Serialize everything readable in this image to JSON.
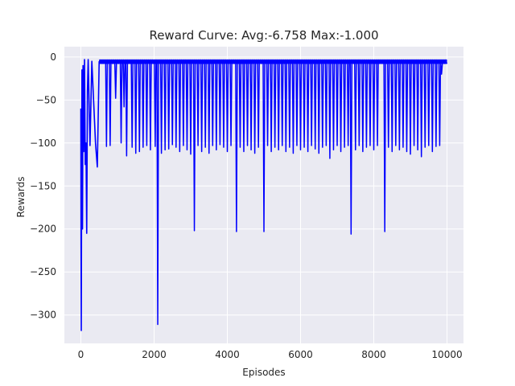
{
  "chart_data": {
    "type": "line",
    "title": "Reward Curve: Avg:-6.758 Max:-1.000",
    "xlabel": "Episodes",
    "ylabel": "Rewards",
    "xlim": [
      -450,
      10450
    ],
    "ylim": [
      -333,
      12
    ],
    "xticks": [
      0,
      2000,
      4000,
      6000,
      8000,
      10000
    ],
    "yticks": [
      0,
      -50,
      -100,
      -150,
      -200,
      -250,
      -300
    ],
    "grid": true,
    "colors": {
      "background": "#eaeaf2",
      "grid": "#ffffff",
      "line": "#0000ff"
    },
    "series": [
      {
        "color": "#0000ff",
        "baseline_range": [
          -3,
          -8
        ],
        "x_end": 10000,
        "initial_segment": [
          [
            0,
            -60
          ],
          [
            5,
            -215
          ],
          [
            12,
            -318
          ],
          [
            20,
            -160
          ],
          [
            30,
            -15
          ],
          [
            45,
            -200
          ],
          [
            60,
            -10
          ],
          [
            80,
            -110
          ],
          [
            100,
            -3
          ],
          [
            120,
            -125
          ],
          [
            140,
            -100
          ],
          [
            160,
            -205
          ],
          [
            180,
            -40
          ],
          [
            200,
            -3
          ],
          [
            250,
            -103
          ],
          [
            300,
            -5
          ],
          [
            400,
            -100
          ],
          [
            450,
            -128
          ],
          [
            500,
            -5
          ]
        ],
        "spikes": [
          [
            700,
            -104
          ],
          [
            800,
            -103
          ],
          [
            950,
            -48
          ],
          [
            1100,
            -100
          ],
          [
            1180,
            -58
          ],
          [
            1250,
            -115
          ],
          [
            1400,
            -105
          ],
          [
            1500,
            -112
          ],
          [
            1600,
            -110
          ],
          [
            1700,
            -105
          ],
          [
            1800,
            -103
          ],
          [
            1900,
            -108
          ],
          [
            2030,
            -104
          ],
          [
            2100,
            -311
          ],
          [
            2200,
            -112
          ],
          [
            2300,
            -108
          ],
          [
            2400,
            -107
          ],
          [
            2500,
            -102
          ],
          [
            2600,
            -105
          ],
          [
            2700,
            -110
          ],
          [
            2800,
            -103
          ],
          [
            2900,
            -108
          ],
          [
            3000,
            -113
          ],
          [
            3100,
            -202
          ],
          [
            3200,
            -103
          ],
          [
            3300,
            -110
          ],
          [
            3400,
            -105
          ],
          [
            3500,
            -112
          ],
          [
            3600,
            -103
          ],
          [
            3700,
            -108
          ],
          [
            3800,
            -102
          ],
          [
            3900,
            -105
          ],
          [
            4000,
            -110
          ],
          [
            4100,
            -103
          ],
          [
            4250,
            -203
          ],
          [
            4350,
            -105
          ],
          [
            4450,
            -110
          ],
          [
            4550,
            -103
          ],
          [
            4650,
            -108
          ],
          [
            4750,
            -112
          ],
          [
            4850,
            -105
          ],
          [
            5000,
            -203
          ],
          [
            5100,
            -103
          ],
          [
            5200,
            -110
          ],
          [
            5300,
            -105
          ],
          [
            5400,
            -108
          ],
          [
            5500,
            -103
          ],
          [
            5600,
            -110
          ],
          [
            5700,
            -105
          ],
          [
            5800,
            -112
          ],
          [
            5900,
            -103
          ],
          [
            6000,
            -108
          ],
          [
            6100,
            -105
          ],
          [
            6200,
            -110
          ],
          [
            6300,
            -103
          ],
          [
            6400,
            -107
          ],
          [
            6500,
            -112
          ],
          [
            6600,
            -105
          ],
          [
            6700,
            -103
          ],
          [
            6800,
            -118
          ],
          [
            6900,
            -108
          ],
          [
            7000,
            -103
          ],
          [
            7100,
            -110
          ],
          [
            7200,
            -105
          ],
          [
            7300,
            -103
          ],
          [
            7380,
            -206
          ],
          [
            7500,
            -108
          ],
          [
            7600,
            -103
          ],
          [
            7700,
            -110
          ],
          [
            7800,
            -105
          ],
          [
            7900,
            -103
          ],
          [
            8000,
            -108
          ],
          [
            8100,
            -103
          ],
          [
            8300,
            -203
          ],
          [
            8400,
            -105
          ],
          [
            8500,
            -110
          ],
          [
            8600,
            -103
          ],
          [
            8700,
            -108
          ],
          [
            8800,
            -105
          ],
          [
            8900,
            -110
          ],
          [
            9000,
            -113
          ],
          [
            9100,
            -103
          ],
          [
            9200,
            -108
          ],
          [
            9300,
            -116
          ],
          [
            9400,
            -105
          ],
          [
            9500,
            -103
          ],
          [
            9600,
            -110
          ],
          [
            9700,
            -104
          ],
          [
            9800,
            -103
          ],
          [
            9850,
            -20
          ]
        ]
      }
    ]
  }
}
